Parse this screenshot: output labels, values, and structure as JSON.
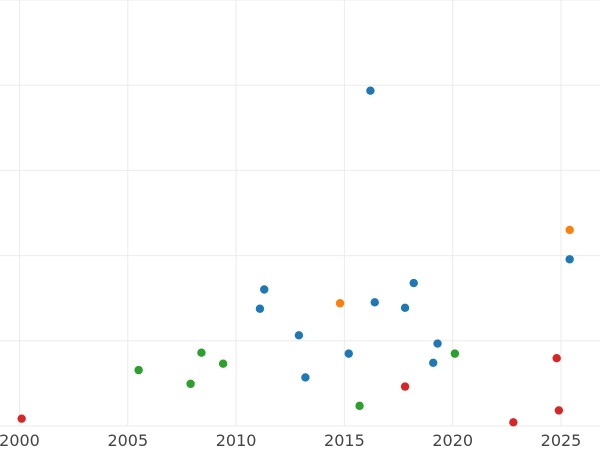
{
  "chart_data": {
    "type": "scatter",
    "title": "",
    "xlabel": "",
    "ylabel": "",
    "xlim": [
      1999.1,
      2026.8
    ],
    "ylim": [
      0.0,
      4.65
    ],
    "x_ticks": [
      2000,
      2005,
      2010,
      2015,
      2020,
      2025
    ],
    "x_tick_labels": [
      "2000",
      "2005",
      "2010",
      "2015",
      "2020",
      "2025"
    ],
    "y_ticks": [
      0,
      0.93,
      1.86,
      2.79,
      3.72,
      4.65
    ],
    "y_tick_labels": [],
    "grid": true,
    "legend": false,
    "series": [
      {
        "color": "#1f77b4",
        "points": [
          {
            "x": 2011.1,
            "y": 1.28
          },
          {
            "x": 2011.3,
            "y": 1.49
          },
          {
            "x": 2012.9,
            "y": 0.99
          },
          {
            "x": 2013.2,
            "y": 0.53
          },
          {
            "x": 2015.2,
            "y": 0.79
          },
          {
            "x": 2016.2,
            "y": 3.66
          },
          {
            "x": 2016.4,
            "y": 1.35
          },
          {
            "x": 2017.8,
            "y": 1.29
          },
          {
            "x": 2018.2,
            "y": 1.56
          },
          {
            "x": 2019.1,
            "y": 0.69
          },
          {
            "x": 2019.3,
            "y": 0.9
          },
          {
            "x": 2025.4,
            "y": 1.82
          }
        ]
      },
      {
        "color": "#ff7f0e",
        "points": [
          {
            "x": 2014.8,
            "y": 1.34
          },
          {
            "x": 2025.4,
            "y": 2.14
          }
        ]
      },
      {
        "color": "#2ca02c",
        "points": [
          {
            "x": 2005.5,
            "y": 0.61
          },
          {
            "x": 2007.9,
            "y": 0.46
          },
          {
            "x": 2008.4,
            "y": 0.8
          },
          {
            "x": 2009.4,
            "y": 0.68
          },
          {
            "x": 2015.7,
            "y": 0.22
          },
          {
            "x": 2020.1,
            "y": 0.79
          }
        ]
      },
      {
        "color": "#d62728",
        "points": [
          {
            "x": 2000.1,
            "y": 0.08
          },
          {
            "x": 2017.8,
            "y": 0.43
          },
          {
            "x": 2022.8,
            "y": 0.04
          },
          {
            "x": 2024.8,
            "y": 0.74
          },
          {
            "x": 2024.9,
            "y": 0.17
          }
        ]
      }
    ]
  }
}
